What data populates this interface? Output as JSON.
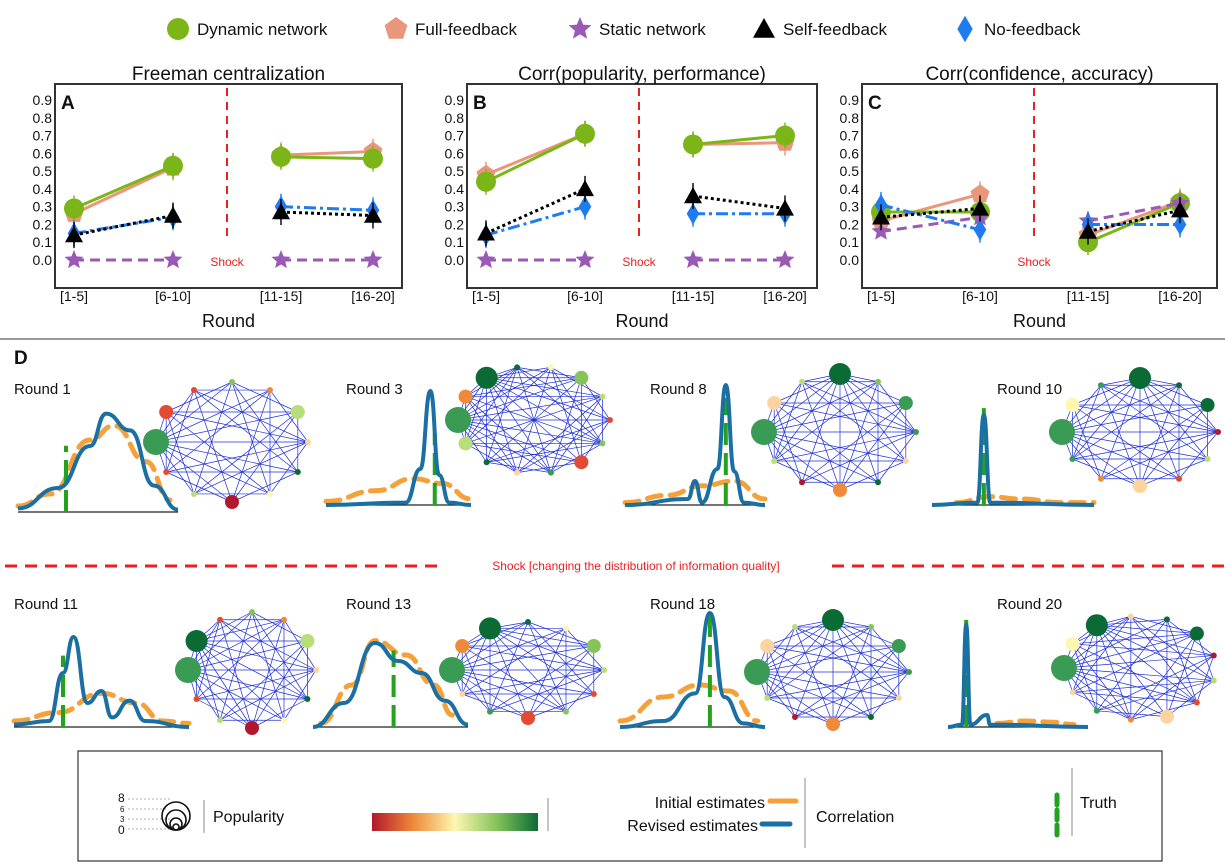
{
  "legend": [
    {
      "label": "Dynamic network",
      "marker": "circle",
      "color": "#7cb518"
    },
    {
      "label": "Full-feedback",
      "marker": "pentagon",
      "color": "#e9967a"
    },
    {
      "label": "Static network",
      "marker": "star",
      "color": "#9b59b6"
    },
    {
      "label": "Self-feedback",
      "marker": "triangle",
      "color": "#000000"
    },
    {
      "label": "No-feedback",
      "marker": "diamond",
      "color": "#1e7bf0"
    }
  ],
  "chart_data": [
    {
      "type": "line",
      "panel": "A",
      "title": "Freeman centralization",
      "xlabel": "Round",
      "categories": [
        "[1-5]",
        "[6-10]",
        "[11-15]",
        "[16-20]"
      ],
      "yticks": [
        "0.0",
        "0.1",
        "0.2",
        "0.3",
        "0.4",
        "0.5",
        "0.6",
        "0.7",
        "0.8",
        "0.9"
      ],
      "ylim": [
        0,
        0.9
      ],
      "shock_label": "Shock",
      "series": [
        {
          "key": "dynamic",
          "values": [
            0.29,
            0.53,
            0.58,
            0.57
          ]
        },
        {
          "key": "full",
          "values": [
            0.26,
            0.52,
            0.59,
            0.61
          ]
        },
        {
          "key": "static",
          "values": [
            0.0,
            0.0,
            0.0,
            0.0
          ]
        },
        {
          "key": "self",
          "values": [
            0.14,
            0.25,
            0.27,
            0.25
          ]
        },
        {
          "key": "none",
          "values": [
            0.15,
            0.24,
            0.3,
            0.28
          ]
        }
      ]
    },
    {
      "type": "line",
      "panel": "B",
      "title": "Corr(popularity, performance)",
      "xlabel": "Round",
      "categories": [
        "[1-5]",
        "[6-10]",
        "[11-15]",
        "[16-20]"
      ],
      "yticks": [
        "0.0",
        "0.1",
        "0.2",
        "0.3",
        "0.4",
        "0.5",
        "0.6",
        "0.7",
        "0.8",
        "0.9"
      ],
      "ylim": [
        0,
        0.9
      ],
      "shock_label": "Shock",
      "series": [
        {
          "key": "dynamic",
          "values": [
            0.44,
            0.71,
            0.65,
            0.7
          ]
        },
        {
          "key": "full",
          "values": [
            0.48,
            0.71,
            0.65,
            0.66
          ]
        },
        {
          "key": "static",
          "values": [
            0.0,
            0.0,
            0.0,
            0.0
          ]
        },
        {
          "key": "self",
          "values": [
            0.15,
            0.4,
            0.36,
            0.29
          ]
        },
        {
          "key": "none",
          "values": [
            0.14,
            0.3,
            0.26,
            0.26
          ]
        }
      ]
    },
    {
      "type": "line",
      "panel": "C",
      "title": "Corr(confidence, accuracy)",
      "xlabel": "Round",
      "categories": [
        "[1-5]",
        "[6-10]",
        "[11-15]",
        "[16-20]"
      ],
      "yticks": [
        "0.0",
        "0.1",
        "0.2",
        "0.3",
        "0.4",
        "0.5",
        "0.6",
        "0.7",
        "0.8",
        "0.9"
      ],
      "ylim": [
        0,
        0.9
      ],
      "shock_label": "Shock",
      "series": [
        {
          "key": "dynamic",
          "values": [
            0.27,
            0.27,
            0.1,
            0.32
          ]
        },
        {
          "key": "full",
          "values": [
            0.22,
            0.37,
            0.14,
            0.33
          ]
        },
        {
          "key": "static",
          "values": [
            0.16,
            0.24,
            0.22,
            0.32
          ]
        },
        {
          "key": "self",
          "values": [
            0.24,
            0.29,
            0.16,
            0.28
          ]
        },
        {
          "key": "none",
          "values": [
            0.31,
            0.17,
            0.2,
            0.2
          ]
        }
      ]
    }
  ],
  "panel_d": {
    "label": "D",
    "rounds_top": [
      "Round 1",
      "Round 3",
      "Round 8",
      "Round 10"
    ],
    "rounds_bottom": [
      "Round 11",
      "Round 13",
      "Round 18",
      "Round 20"
    ],
    "shock_text": "Shock [changing the distribution of information quality]",
    "legend": {
      "popularity_ticks": [
        "8",
        "6",
        "3",
        "0"
      ],
      "popularity_label": "Popularity",
      "initial_label": "Initial estimates",
      "revised_label": "Revised estimates",
      "correlation_label": "Correlation",
      "truth_label": "Truth",
      "initial_color": "#f5a13a",
      "revised_color": "#1a6fa3",
      "truth_color": "#22a21f",
      "edge_color": "#1f2ed6"
    }
  }
}
